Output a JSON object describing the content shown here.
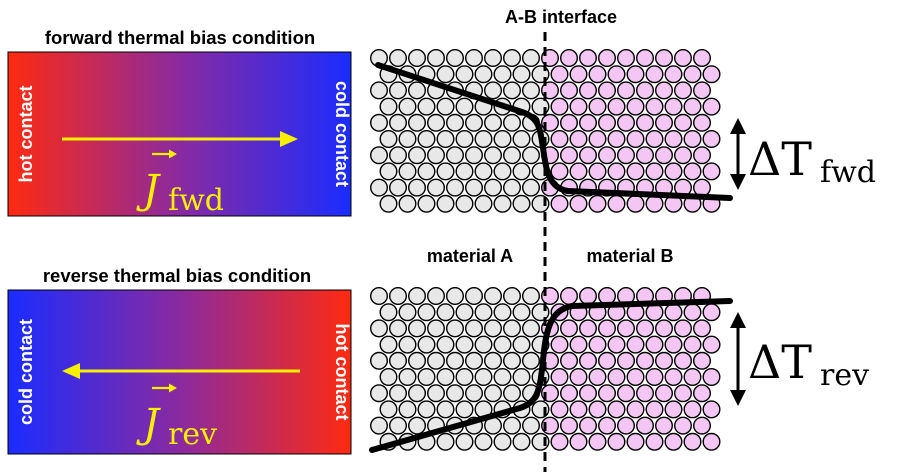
{
  "top_panel": {
    "title": "forward thermal bias condition",
    "left_contact": "hot contact",
    "right_contact": "cold contact",
    "flux_symbol": "J",
    "flux_subscript": "fwd",
    "delta_symbol": "ΔT",
    "delta_subscript": "fwd"
  },
  "bottom_panel": {
    "title": "reverse thermal bias condition",
    "left_contact": "cold contact",
    "right_contact": "hot contact",
    "flux_symbol": "J",
    "flux_subscript": "rev",
    "delta_symbol": "ΔT",
    "delta_subscript": "rev"
  },
  "interface_label": "A-B interface",
  "material_a_label": "material A",
  "material_b_label": "material B",
  "colors": {
    "hot": "#ff2a10",
    "mid": "#8a2aa0",
    "cold": "#1a2cff",
    "arrow": "#f5ef00",
    "atom_a": "#e8e8e8",
    "atom_b": "#f4c6f4",
    "profile": "#000000"
  }
}
